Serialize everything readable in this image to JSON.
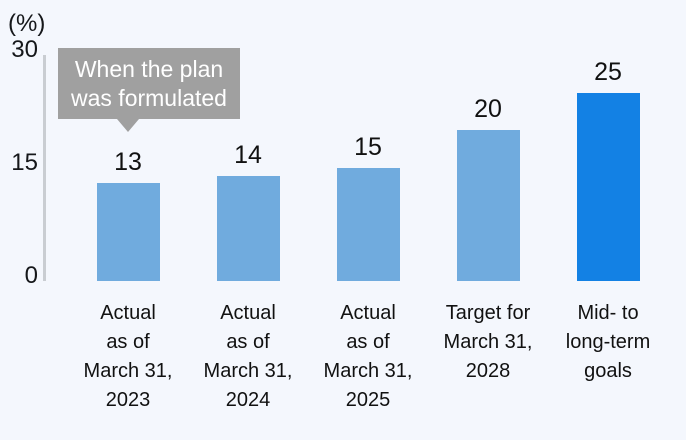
{
  "page": {
    "background_color": "#f4f7fd",
    "text_color": "#111111"
  },
  "chart_data": {
    "type": "bar",
    "unit": "(%)",
    "categories": [
      "Actual\nas of\nMarch 31,\n2023",
      "Actual\nas of\nMarch 31,\n2024",
      "Actual\nas of\nMarch 31,\n2025",
      "Target for\nMarch 31,\n2028",
      "Mid- to\nlong-term\ngoals"
    ],
    "values": [
      13,
      14,
      15,
      20,
      25
    ],
    "bar_colors": [
      "#70ABDE",
      "#70ABDE",
      "#70ABDE",
      "#70ABDE",
      "#1381E4"
    ],
    "yticks": [
      0,
      15,
      30
    ],
    "ylim": [
      0,
      30
    ],
    "grid": "off",
    "legend": "none",
    "annotation": "When the plan\nwas formulated",
    "annotation_bg": "#a0a0a0",
    "annotation_text_color": "#ffffff"
  }
}
